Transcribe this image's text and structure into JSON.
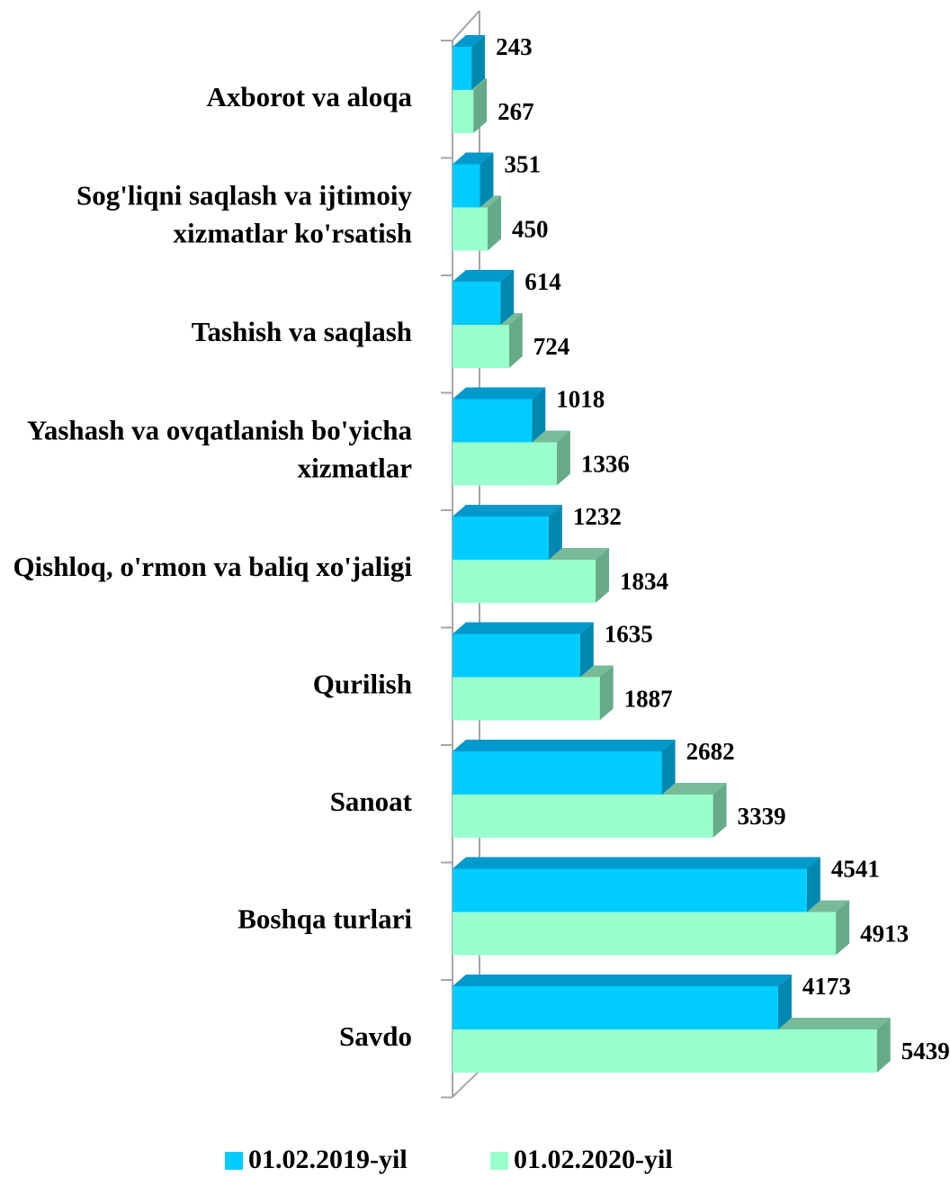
{
  "chart_data": {
    "type": "bar3d_horizontal",
    "categories": [
      "Axborot va aloqa",
      "Sog'liqni saqlash va ijtimoiy xizmatlar ko'rsatish",
      "Tashish va saqlash",
      "Yashash va ovqatlanish bo'yicha xizmatlar",
      "Qishloq, o'rmon va baliq xo'jaligi",
      "Qurilish",
      "Sanoat",
      "Boshqa turlari",
      "Savdo"
    ],
    "series": [
      {
        "name": "01.02.2019-yil",
        "color": "#00ccff",
        "values": [
          243,
          351,
          614,
          1018,
          1232,
          1635,
          2682,
          4541,
          4173
        ]
      },
      {
        "name": "01.02.2020-yil",
        "color": "#99ffcc",
        "values": [
          267,
          450,
          724,
          1336,
          1834,
          1887,
          3339,
          4913,
          5439
        ]
      }
    ],
    "xlim": [
      0,
      5500
    ],
    "legend": "bottom"
  }
}
